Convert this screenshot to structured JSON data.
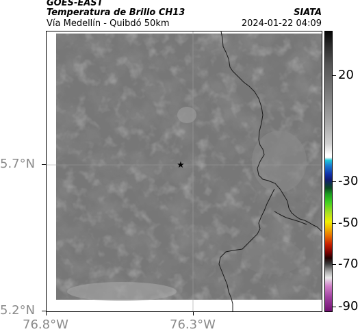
{
  "header": {
    "satellite": "GOES-EAST",
    "product": "Temperatura de Brillo CH13",
    "region": "Vía Medellín - Quibdó 50km",
    "brand": "SIATA",
    "timestamp": "2024-01-22 04:09"
  },
  "map": {
    "lat_labels": [
      "5.7°N",
      "5.2°N"
    ],
    "lon_labels": [
      "76.8°W",
      "76.3°W"
    ],
    "marker": "star-marker",
    "colors": {
      "cloud_gray": "#767676",
      "coastline": "#1a1a1a"
    }
  },
  "colorbar": {
    "tick_labels": [
      "20",
      "-30",
      "-50",
      "-70",
      "-90"
    ]
  }
}
